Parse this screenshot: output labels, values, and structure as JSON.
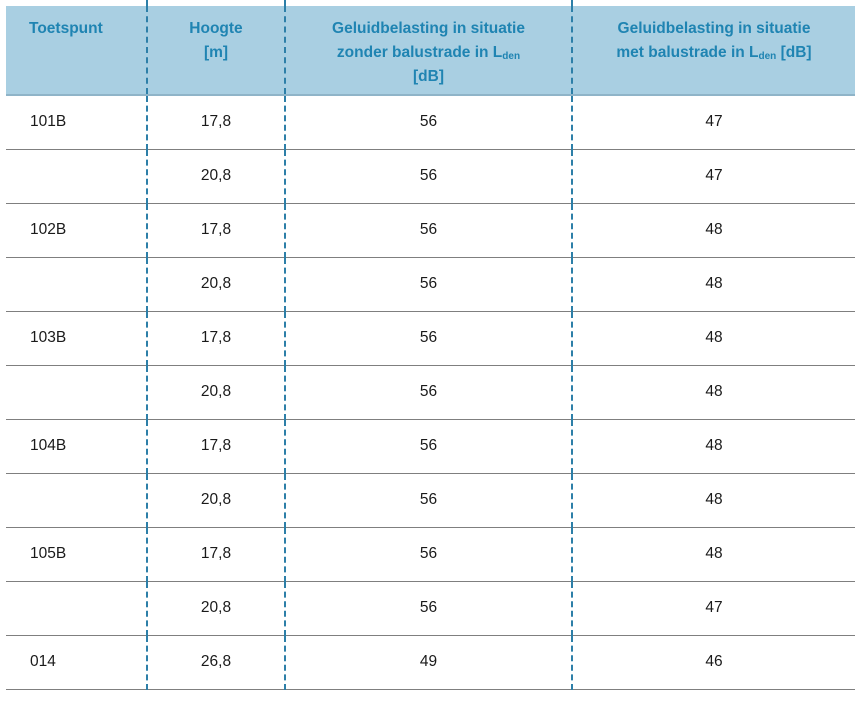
{
  "table": {
    "headers": {
      "toetspunt": "Toetspunt",
      "hoogte_line1": "Hoogte",
      "hoogte_line2": "[m]",
      "zonder_line1": "Geluidbelasting in situatie",
      "zonder_line2": "zonder balustrade in L",
      "zonder_sub": "den",
      "zonder_line3": "[dB]",
      "met_line1": "Geluidbelasting in situatie",
      "met_line2": "met balustrade in L",
      "met_sub": "den",
      "met_line2_tail": " [dB]"
    },
    "rows": [
      {
        "toetspunt": "101B",
        "hoogte": "17,8",
        "zonder": "56",
        "met": "47"
      },
      {
        "toetspunt": "",
        "hoogte": "20,8",
        "zonder": "56",
        "met": "47"
      },
      {
        "toetspunt": "102B",
        "hoogte": "17,8",
        "zonder": "56",
        "met": "48"
      },
      {
        "toetspunt": "",
        "hoogte": "20,8",
        "zonder": "56",
        "met": "48"
      },
      {
        "toetspunt": "103B",
        "hoogte": "17,8",
        "zonder": "56",
        "met": "48"
      },
      {
        "toetspunt": "",
        "hoogte": "20,8",
        "zonder": "56",
        "met": "48"
      },
      {
        "toetspunt": "104B",
        "hoogte": "17,8",
        "zonder": "56",
        "met": "48"
      },
      {
        "toetspunt": "",
        "hoogte": "20,8",
        "zonder": "56",
        "met": "48"
      },
      {
        "toetspunt": "105B",
        "hoogte": "17,8",
        "zonder": "56",
        "met": "48"
      },
      {
        "toetspunt": "",
        "hoogte": "20,8",
        "zonder": "56",
        "met": "47"
      },
      {
        "toetspunt": "014",
        "hoogte": "26,8",
        "zonder": "49",
        "met": "46"
      }
    ]
  }
}
